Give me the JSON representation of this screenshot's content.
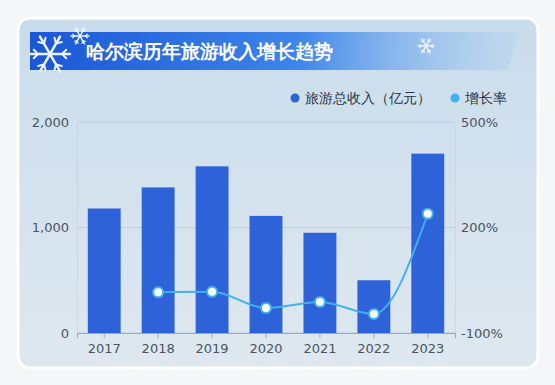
{
  "chart_data": {
    "type": "bar",
    "title": "哈尔滨历年旅游收入增长趋势",
    "categories": [
      "2017",
      "2018",
      "2019",
      "2020",
      "2021",
      "2022",
      "2023"
    ],
    "series": [
      {
        "name": "旅游总收入（亿元）",
        "type": "bar",
        "color": "#2d62d8",
        "values": [
          1180,
          1380,
          1580,
          1110,
          950,
          500,
          1700
        ]
      },
      {
        "name": "增长率",
        "type": "line",
        "color": "#3fb2f0",
        "axis": "y2",
        "marker": "circle",
        "values": [
          null,
          16,
          17,
          -29,
          -12,
          -46,
          239
        ]
      }
    ],
    "ylim": [
      0,
      2000
    ],
    "yticks": [
      0,
      {
        "value": 1000,
        "label": "1,000"
      },
      {
        "value": 2000,
        "label": "2,000"
      }
    ],
    "y2lim": [
      -100,
      500
    ],
    "y2ticks": [
      {
        "value": -100,
        "label": "-100%"
      },
      {
        "value": 200,
        "label": "200%"
      },
      {
        "value": 500,
        "label": "500%"
      }
    ],
    "grid": true,
    "legend": "top-right"
  }
}
